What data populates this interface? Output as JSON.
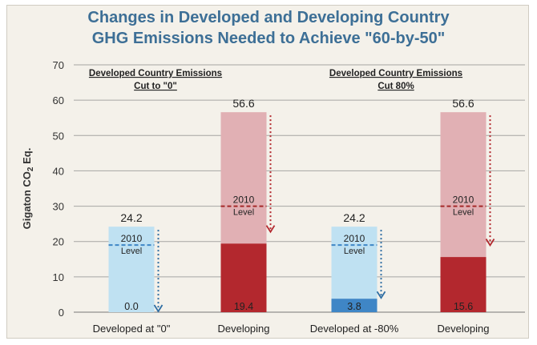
{
  "chart_data": {
    "type": "bar",
    "title_line1": "Changes in Developed and Developing Country",
    "title_line2": "GHG Emissions Needed to Achieve \"60-by-50\"",
    "ylabel": "Gigaton CO",
    "ylabel_sub": "2",
    "ylabel_tail": " Eq.",
    "ylim": [
      0,
      70
    ],
    "yticks": [
      0,
      10,
      20,
      30,
      40,
      50,
      60,
      70
    ],
    "grid": true,
    "categories": [
      "Developed at \"0\"",
      "Developing",
      "Developed at -80%",
      "Developing"
    ],
    "totals": [
      24.2,
      56.6,
      24.2,
      56.6
    ],
    "total_labels": [
      "24.2",
      "56.6",
      "24.2",
      "56.6"
    ],
    "targets": [
      0.0,
      19.4,
      3.8,
      15.6
    ],
    "target_labels": [
      "0.0",
      "19.4",
      "3.8",
      "15.6"
    ],
    "level_2010": [
      19,
      30,
      19,
      30
    ],
    "level_label_line1": "2010",
    "level_label_line2": "Level",
    "group_headers": [
      {
        "line1": "Developed Country Emissions",
        "line2": "Cut to \"0\""
      },
      {
        "line1": "Developed Country Emissions",
        "line2": "Cut 80%"
      }
    ],
    "colors": {
      "developed_light": "#bfe1f2",
      "developed_dark": "#3f86c6",
      "developing_light": "#e1b0b4",
      "developing_dark": "#b3282e",
      "level_dashed_developed": "#3f86c6",
      "level_dashed_developing": "#a52a2a",
      "arrow_developed": "#2f6ea3",
      "arrow_developing": "#b3282e",
      "title": "#3d6f96",
      "grid": "#8c8c8c"
    }
  }
}
